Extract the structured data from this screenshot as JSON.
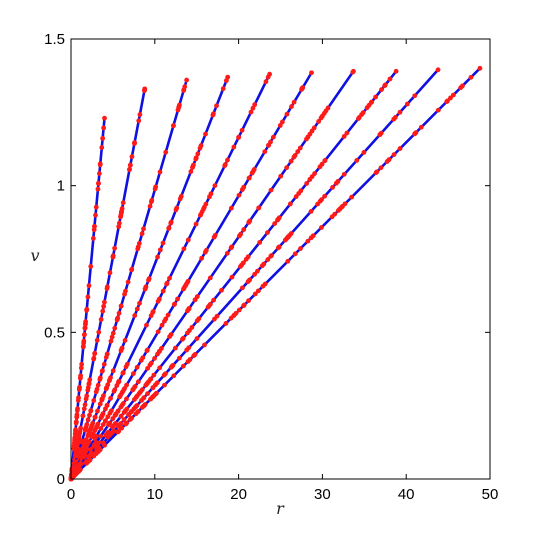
{
  "chart_data": {
    "type": "line",
    "title": "",
    "xlabel": "r",
    "ylabel": "v",
    "xlim": [
      0,
      50
    ],
    "ylim": [
      0,
      1.5
    ],
    "xticks": [
      "0",
      "10",
      "20",
      "30",
      "40",
      "50"
    ],
    "yticks": [
      "0",
      "0.5",
      "1",
      "1.5"
    ],
    "grid": false,
    "legend": "none",
    "line_color": "#1010e0",
    "marker_color": "#ff1a1a",
    "series": [
      {
        "x": [
          0,
          4.0
        ],
        "y": [
          0,
          1.23
        ]
      },
      {
        "x": [
          0,
          8.8
        ],
        "y": [
          0,
          1.33
        ]
      },
      {
        "x": [
          0,
          13.8
        ],
        "y": [
          0,
          1.36
        ]
      },
      {
        "x": [
          0,
          18.7
        ],
        "y": [
          0,
          1.37
        ]
      },
      {
        "x": [
          0,
          23.7
        ],
        "y": [
          0,
          1.38
        ]
      },
      {
        "x": [
          0,
          28.7
        ],
        "y": [
          0,
          1.385
        ]
      },
      {
        "x": [
          0,
          33.7
        ],
        "y": [
          0,
          1.39
        ]
      },
      {
        "x": [
          0,
          38.8
        ],
        "y": [
          0,
          1.39
        ]
      },
      {
        "x": [
          0,
          43.8
        ],
        "y": [
          0,
          1.395
        ]
      },
      {
        "x": [
          0,
          48.8
        ],
        "y": [
          0,
          1.4
        ]
      }
    ]
  }
}
